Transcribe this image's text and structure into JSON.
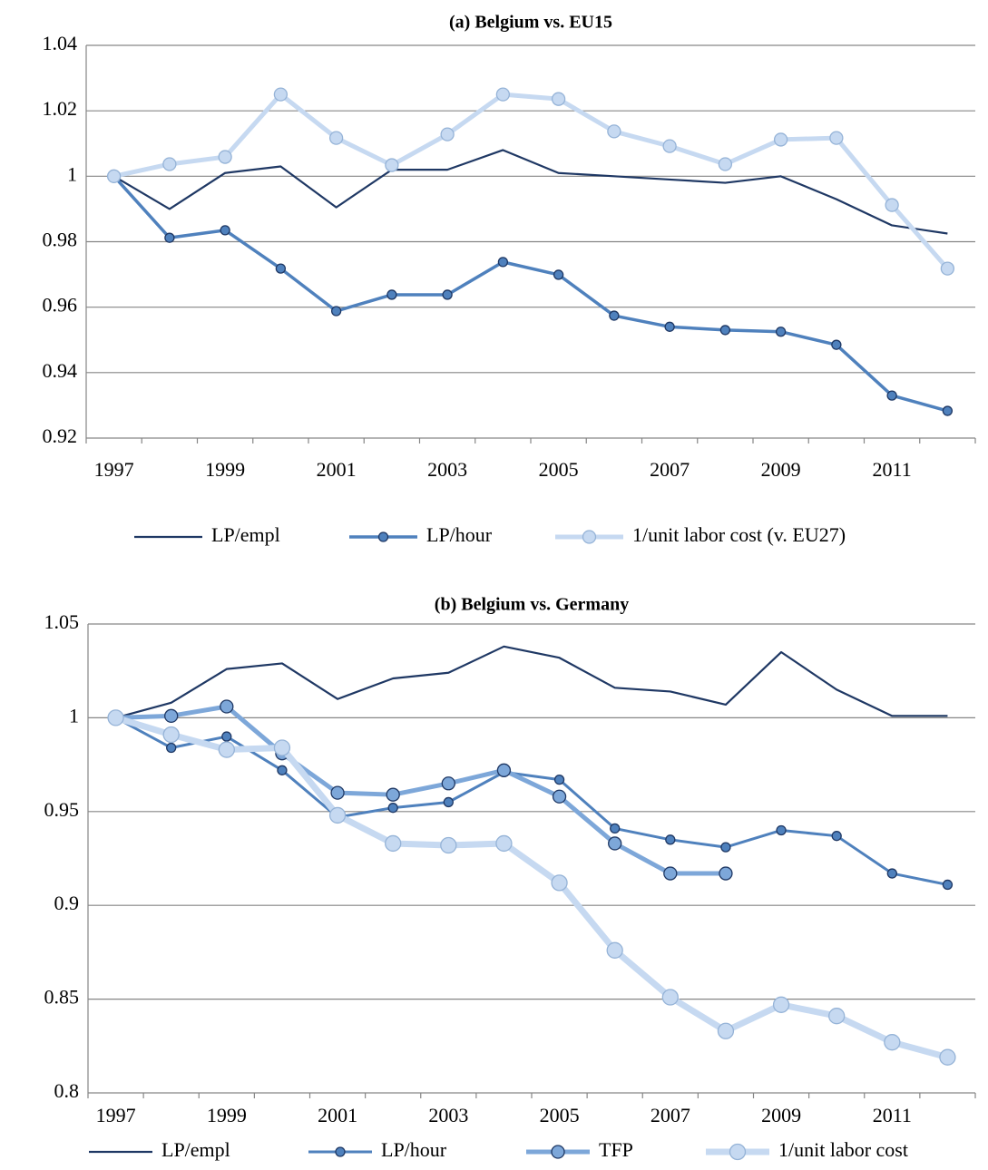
{
  "chart_data": [
    {
      "type": "line",
      "title": "(a) Belgium vs. EU15",
      "categories": [
        "1997",
        null,
        "1999",
        null,
        "2001",
        null,
        "2003",
        null,
        "2005",
        null,
        "2007",
        null,
        "2009",
        null,
        "2011",
        null
      ],
      "ylim": [
        0.92,
        1.04
      ],
      "yticks": [
        0.92,
        0.94,
        0.96,
        0.98,
        1,
        1.02,
        1.04
      ],
      "grid": true,
      "legend": "bottom",
      "series": [
        {
          "name": "LP/empl",
          "color": "#1f3864",
          "values": [
            1.0,
            0.99,
            1.001,
            1.003,
            0.9905,
            1.002,
            1.002,
            1.008,
            1.001,
            1.0,
            0.999,
            0.998,
            1.0,
            0.993,
            0.985,
            0.9825
          ]
        },
        {
          "name": "LP/hour",
          "color": "#4f81bd",
          "values": [
            1.0,
            0.9812,
            0.9835,
            0.9718,
            0.9588,
            0.9638,
            0.9638,
            0.9738,
            0.9699,
            0.9574,
            0.954,
            0.953,
            0.9525,
            0.9485,
            0.933,
            0.9283
          ]
        },
        {
          "name": "1/unit labor cost (v. EU27)",
          "color": "#c6d9f1",
          "values": [
            1.0,
            1.0037,
            1.0059,
            1.025,
            1.0117,
            1.0034,
            1.0128,
            1.025,
            1.0236,
            1.0137,
            1.0092,
            1.0037,
            1.0112,
            1.0117,
            0.9912,
            0.9718
          ]
        }
      ]
    },
    {
      "type": "line",
      "title": "(b) Belgium vs. Germany",
      "categories": [
        "1997",
        null,
        "1999",
        null,
        "2001",
        null,
        "2003",
        null,
        "2005",
        null,
        "2007",
        null,
        "2009",
        null,
        "2011",
        null
      ],
      "ylim": [
        0.8,
        1.05
      ],
      "yticks": [
        0.8,
        0.85,
        0.9,
        0.95,
        1,
        1.05
      ],
      "grid": true,
      "legend": "bottom",
      "series": [
        {
          "name": "LP/empl",
          "color": "#1f3864",
          "values": [
            1.0,
            1.008,
            1.026,
            1.029,
            1.01,
            1.021,
            1.024,
            1.038,
            1.032,
            1.016,
            1.014,
            1.007,
            1.035,
            1.015,
            1.001,
            1.001
          ]
        },
        {
          "name": "LP/hour",
          "color": "#4f81bd",
          "values": [
            1.0,
            0.984,
            0.99,
            0.972,
            0.947,
            0.952,
            0.955,
            0.971,
            0.967,
            0.941,
            0.935,
            0.931,
            0.94,
            0.937,
            0.917,
            0.911
          ]
        },
        {
          "name": "TFP",
          "color": "#7da7d9",
          "values": [
            1.0,
            1.001,
            1.006,
            0.981,
            0.96,
            0.959,
            0.965,
            0.972,
            0.958,
            0.933,
            0.917,
            0.917,
            null,
            null,
            null,
            null
          ]
        },
        {
          "name": "1/unit labor cost",
          "color": "#c6d9f1",
          "values": [
            1.0,
            0.991,
            0.983,
            0.984,
            0.948,
            0.933,
            0.932,
            0.933,
            0.912,
            0.876,
            0.851,
            0.833,
            0.847,
            0.841,
            0.827,
            0.819
          ]
        }
      ]
    }
  ]
}
